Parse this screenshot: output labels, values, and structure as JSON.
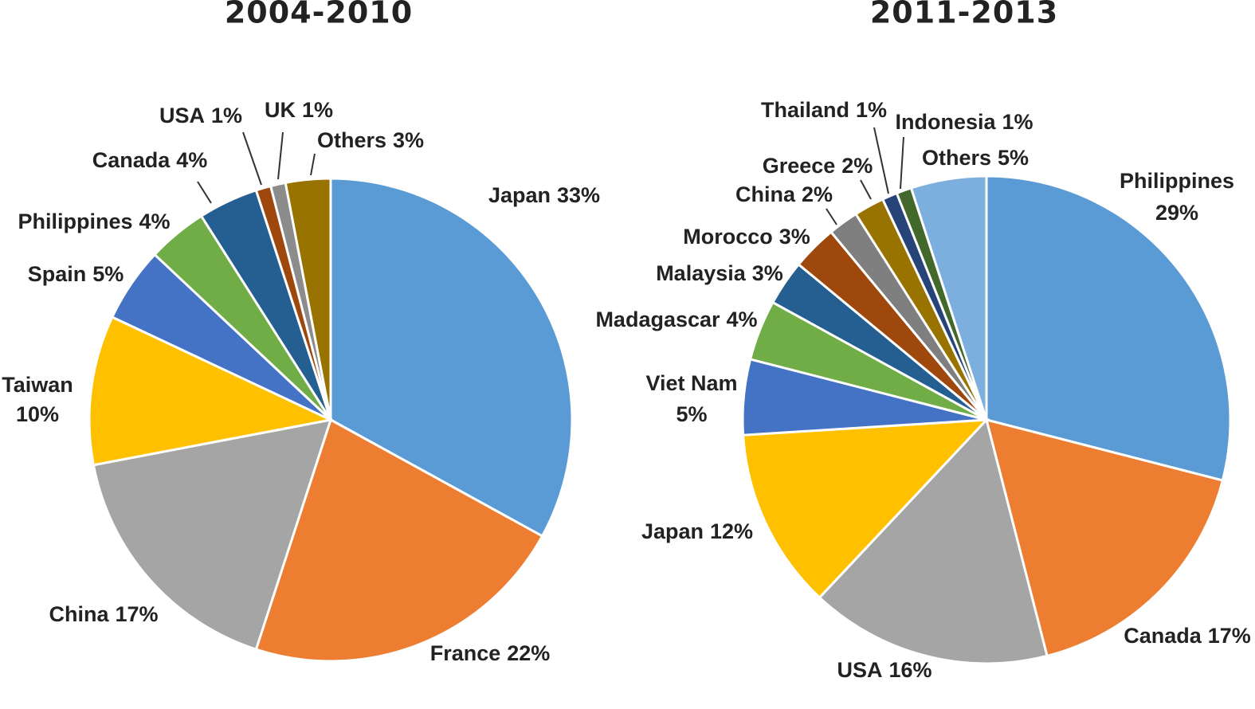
{
  "chart_data": [
    {
      "type": "pie",
      "title": "2004-2010",
      "categories": [
        "Japan",
        "France",
        "China",
        "Taiwan",
        "Spain",
        "Philippines",
        "Canada",
        "USA",
        "UK",
        "Others"
      ],
      "values": [
        33,
        22,
        17,
        10,
        5,
        4,
        4,
        1,
        1,
        3
      ],
      "value_labels": [
        "33%",
        "22%",
        "17%",
        "10%",
        "5%",
        "4%",
        "4%",
        "1%",
        "1%",
        "3%"
      ],
      "colors": [
        "#5b9bd5",
        "#ed7d31",
        "#a5a5a5",
        "#ffc000",
        "#4472c4",
        "#70ad47",
        "#255e91",
        "#9e480e",
        "#8c8c8c",
        "#997300"
      ]
    },
    {
      "type": "pie",
      "title": "2011-2013",
      "categories": [
        "Philippines",
        "Canada",
        "USA",
        "Japan",
        "Viet Nam",
        "Madagascar",
        "Malaysia",
        "Morocco",
        "China",
        "Greece",
        "Thailand",
        "Indonesia",
        "Others"
      ],
      "values": [
        29,
        17,
        16,
        12,
        5,
        4,
        3,
        3,
        2,
        2,
        1,
        1,
        5
      ],
      "value_labels": [
        "29%",
        "17%",
        "16%",
        "12%",
        "5%",
        "4%",
        "3%",
        "3%",
        "2%",
        "2%",
        "1%",
        "1%",
        "5%"
      ],
      "colors": [
        "#5b9bd5",
        "#ed7d31",
        "#a5a5a5",
        "#ffc000",
        "#4472c4",
        "#70ad47",
        "#255e91",
        "#9e480e",
        "#7f7f7f",
        "#997300",
        "#264478",
        "#43682b",
        "#7cafdd"
      ]
    }
  ]
}
